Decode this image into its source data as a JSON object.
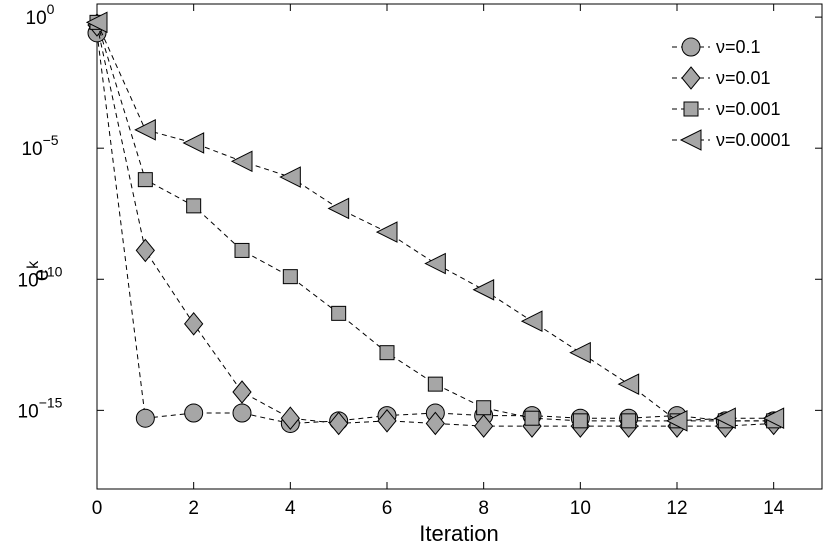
{
  "chart_data": {
    "type": "scatter",
    "xlabel": "Iteration",
    "ylabel": "e",
    "ylabel_superscript": "k",
    "xlim": [
      0,
      15
    ],
    "ylim_log10": [
      -18,
      0.5
    ],
    "y_scale": "log",
    "x_ticks": [
      0,
      2,
      4,
      6,
      8,
      10,
      12,
      14
    ],
    "x_tick_labels": [
      "0",
      "2",
      "4",
      "6",
      "8",
      "10",
      "12",
      "14"
    ],
    "y_ticks_log10": [
      0,
      -5,
      -10,
      -15
    ],
    "y_tick_base": "10",
    "y_tick_exponents": [
      "0",
      "−5",
      "−10",
      "−15"
    ],
    "grid": false,
    "legend_position": "top-right",
    "marker_fill": "#a6a6a6",
    "line_style": "dashed",
    "series": [
      {
        "name": "ν=0.1",
        "marker": "circle",
        "x": [
          0,
          1,
          2,
          3,
          4,
          5,
          6,
          7,
          8,
          9,
          10,
          11,
          12,
          13,
          14
        ],
        "log10_y": [
          -0.6,
          -15.3,
          -15.1,
          -15.1,
          -15.5,
          -15.4,
          -15.2,
          -15.1,
          -15.2,
          -15.2,
          -15.3,
          -15.3,
          -15.2,
          -15.4,
          -15.4
        ]
      },
      {
        "name": "ν=0.01",
        "marker": "diamond",
        "x": [
          0,
          1,
          2,
          3,
          4,
          5,
          6,
          7,
          8,
          9,
          10,
          11,
          12,
          13,
          14
        ],
        "log10_y": [
          -0.3,
          -8.9,
          -11.7,
          -14.3,
          -15.3,
          -15.5,
          -15.4,
          -15.5,
          -15.6,
          -15.6,
          -15.6,
          -15.6,
          -15.6,
          -15.6,
          -15.5
        ]
      },
      {
        "name": "ν=0.001",
        "marker": "square",
        "x": [
          0,
          1,
          2,
          3,
          4,
          5,
          6,
          7,
          8,
          9,
          10,
          11,
          12,
          13,
          14
        ],
        "log10_y": [
          -0.2,
          -6.2,
          -7.2,
          -8.9,
          -9.9,
          -11.3,
          -12.8,
          -14.0,
          -14.9,
          -15.3,
          -15.4,
          -15.4,
          -15.4,
          -15.4,
          -15.4
        ]
      },
      {
        "name": "ν=0.0001",
        "marker": "triangle-left",
        "x": [
          0,
          1,
          2,
          3,
          4,
          5,
          6,
          7,
          8,
          9,
          10,
          11,
          12,
          13,
          14
        ],
        "log10_y": [
          -0.2,
          -4.3,
          -4.8,
          -5.5,
          -6.1,
          -7.3,
          -8.2,
          -9.4,
          -10.4,
          -11.6,
          -12.8,
          -14.0,
          -15.4,
          -15.3,
          -15.3
        ]
      }
    ]
  }
}
